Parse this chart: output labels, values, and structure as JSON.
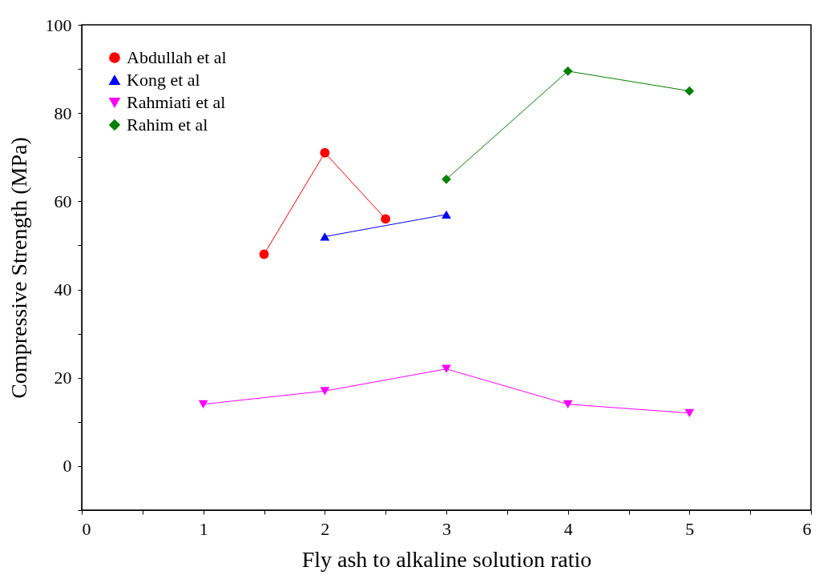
{
  "chart_data": {
    "type": "line",
    "xlabel": "Fly ash to alkaline solution ratio",
    "ylabel": "Compressive Strength (MPa)",
    "xlim": [
      0,
      6
    ],
    "ylim": [
      -10,
      100
    ],
    "xticks": [
      0,
      {
        "value": 0.5,
        "label": null
      },
      1,
      {
        "value": 1.5,
        "label": null
      },
      2,
      {
        "value": 2.5,
        "label": null
      },
      3,
      {
        "value": 3.5,
        "label": null
      },
      4,
      {
        "value": 4.5,
        "label": null
      },
      5,
      {
        "value": 5.5,
        "label": null
      },
      6
    ],
    "yticks": [
      {
        "value": -10,
        "label": null
      },
      0,
      {
        "value": 10,
        "label": null
      },
      20,
      {
        "value": 30,
        "label": null
      },
      40,
      {
        "value": 50,
        "label": null
      },
      60,
      {
        "value": 70,
        "label": null
      },
      80,
      {
        "value": 90,
        "label": null
      },
      100
    ],
    "grid": false,
    "legend": "top left",
    "line_style": "solid",
    "series": [
      {
        "name": "Abdullah et al",
        "color": "#ff0000",
        "marker": "circle",
        "x": [
          1.5,
          2,
          2.5
        ],
        "values": [
          48,
          71,
          56
        ]
      },
      {
        "name": "Kong  et al",
        "color": "#0000ff",
        "marker": "triangle",
        "x": [
          2,
          3
        ],
        "values": [
          52,
          57
        ]
      },
      {
        "name": "Rahmiati et al",
        "color": "#ff00ff",
        "marker": "triangle-down",
        "x": [
          1,
          2,
          3,
          4,
          5
        ],
        "values": [
          14,
          17,
          22,
          14,
          12
        ]
      },
      {
        "name": "Rahim et al",
        "color": "#008000",
        "marker": "diamond",
        "x": [
          3,
          4,
          5
        ],
        "values": [
          65,
          89.5,
          85
        ]
      }
    ]
  }
}
